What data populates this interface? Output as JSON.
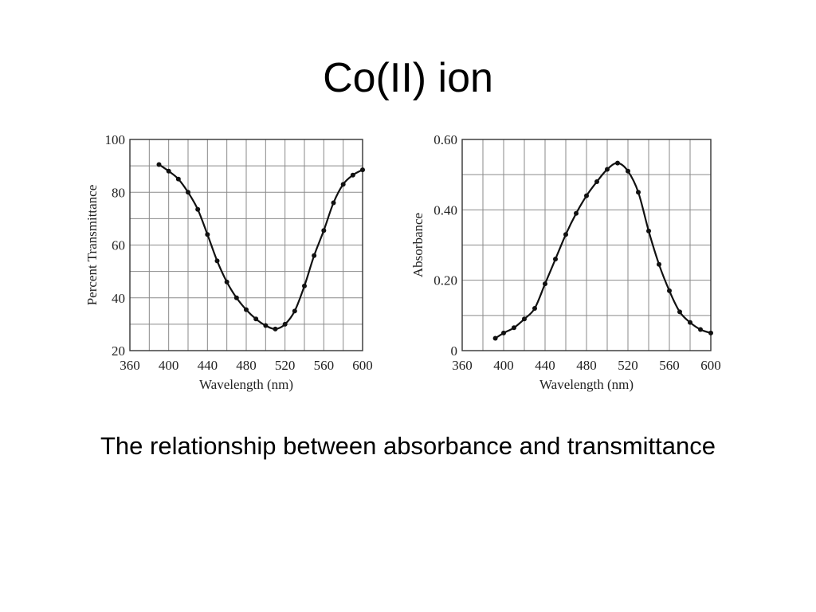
{
  "slide": {
    "title": "Co(II) ion",
    "caption": "The relationship between absorbance and transmittance"
  },
  "chart_data": [
    {
      "type": "line",
      "xlabel": "Wavelength (nm)",
      "ylabel": "Percent Transmittance",
      "xlim": [
        360,
        600
      ],
      "ylim": [
        20,
        100
      ],
      "xticks": [
        "360",
        "400",
        "440",
        "480",
        "520",
        "560",
        "600"
      ],
      "yticks": [
        "20",
        "40",
        "60",
        "80",
        "100"
      ],
      "grid": true,
      "series": [
        {
          "x": [
            390,
            400,
            410,
            420,
            430,
            440,
            450,
            460,
            470,
            480,
            490,
            500,
            510,
            520,
            530,
            540,
            550,
            560,
            570,
            580,
            590,
            600
          ],
          "y": [
            90.5,
            88,
            85,
            80,
            73.5,
            64,
            54,
            46,
            40,
            35.5,
            32,
            29.5,
            28.2,
            30,
            35,
            44.5,
            56,
            65.5,
            76,
            83,
            86.5,
            88.5
          ]
        }
      ]
    },
    {
      "type": "line",
      "xlabel": "Wavelength (nm)",
      "ylabel": "Absorbance",
      "xlim": [
        360,
        600
      ],
      "ylim": [
        0,
        0.6
      ],
      "xticks": [
        "360",
        "400",
        "440",
        "480",
        "520",
        "560",
        "600"
      ],
      "yticks": [
        "0",
        "0.20",
        "0.40",
        "0.60"
      ],
      "grid": true,
      "series": [
        {
          "x": [
            392,
            400,
            410,
            420,
            430,
            440,
            450,
            460,
            470,
            480,
            490,
            500,
            510,
            520,
            530,
            540,
            550,
            560,
            570,
            580,
            590,
            600
          ],
          "y": [
            0.035,
            0.05,
            0.065,
            0.09,
            0.12,
            0.19,
            0.26,
            0.33,
            0.39,
            0.44,
            0.48,
            0.515,
            0.533,
            0.51,
            0.45,
            0.34,
            0.245,
            0.17,
            0.11,
            0.08,
            0.06,
            0.05
          ]
        }
      ]
    }
  ]
}
